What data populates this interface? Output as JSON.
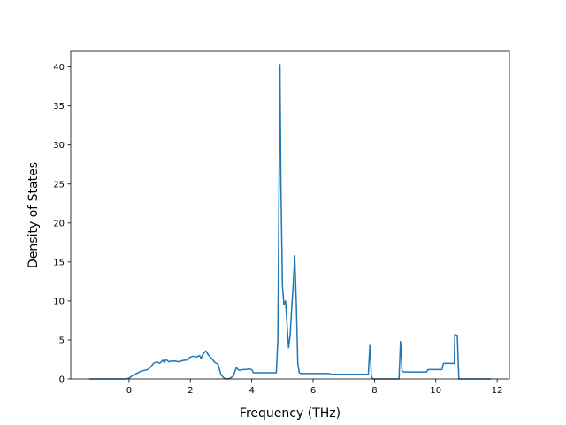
{
  "chart_data": {
    "type": "line",
    "title": "",
    "xlabel": "Frequency (THz)",
    "ylabel": "Density of States",
    "xlim": [
      -1.9,
      12.4
    ],
    "ylim": [
      0,
      42
    ],
    "xticks": [
      0,
      2,
      4,
      6,
      8,
      10,
      12
    ],
    "yticks": [
      0,
      5,
      10,
      15,
      20,
      25,
      30,
      35,
      40
    ],
    "grid": false,
    "legend": "none",
    "series": [
      {
        "name": "",
        "color": "#1f77b4",
        "x": [
          -1.3,
          -0.1,
          0.0,
          0.1,
          0.2,
          0.3,
          0.4,
          0.6,
          0.7,
          0.8,
          0.9,
          1.0,
          1.1,
          1.15,
          1.2,
          1.3,
          1.4,
          1.5,
          1.6,
          1.7,
          1.8,
          1.9,
          2.0,
          2.1,
          2.2,
          2.3,
          2.35,
          2.4,
          2.5,
          2.6,
          2.7,
          2.8,
          2.9,
          3.0,
          3.1,
          3.2,
          3.3,
          3.4,
          3.5,
          3.55,
          3.6,
          3.7,
          3.8,
          3.9,
          4.0,
          4.05,
          4.8,
          4.85,
          4.9,
          4.92,
          4.95,
          5.0,
          5.05,
          5.1,
          5.15,
          5.2,
          5.25,
          5.3,
          5.35,
          5.4,
          5.45,
          5.5,
          5.55,
          5.6,
          5.65,
          5.7,
          6.5,
          6.6,
          7.8,
          7.85,
          7.9,
          7.95,
          8.8,
          8.85,
          8.9,
          8.95,
          9.7,
          9.75,
          10.2,
          10.25,
          10.6,
          10.62,
          10.7,
          10.75,
          11.8
        ],
        "y": [
          0,
          0,
          0.1,
          0.4,
          0.6,
          0.8,
          1.0,
          1.2,
          1.5,
          2.0,
          2.2,
          2.0,
          2.4,
          2.1,
          2.5,
          2.2,
          2.3,
          2.3,
          2.2,
          2.3,
          2.4,
          2.4,
          2.8,
          2.9,
          2.8,
          3.0,
          2.6,
          3.1,
          3.6,
          3.0,
          2.6,
          2.1,
          1.9,
          0.5,
          0.1,
          0.0,
          0.1,
          0.4,
          1.5,
          1.2,
          1.1,
          1.2,
          1.2,
          1.3,
          1.2,
          0.8,
          0.8,
          5.0,
          30.0,
          40.3,
          25.0,
          12.0,
          9.5,
          10.0,
          7.0,
          4.0,
          5.5,
          9.0,
          12.0,
          15.8,
          10.0,
          2.0,
          0.8,
          0.7,
          0.7,
          0.7,
          0.7,
          0.6,
          0.6,
          4.3,
          0.3,
          0.0,
          0.0,
          4.8,
          1.0,
          0.9,
          0.9,
          1.2,
          1.2,
          2.0,
          2.0,
          5.7,
          5.6,
          0.0,
          0.0
        ]
      }
    ]
  }
}
